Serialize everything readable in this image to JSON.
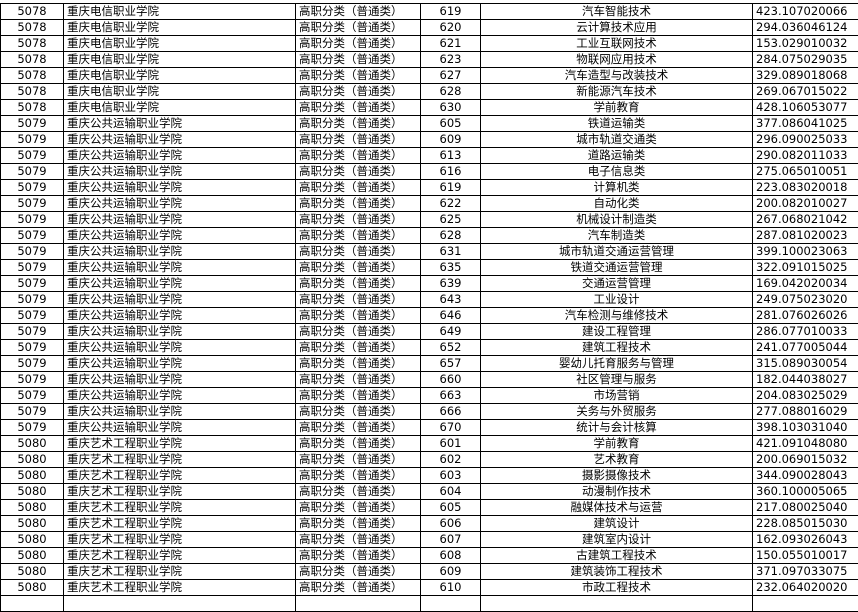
{
  "table": {
    "rows": [
      [
        "5078",
        "重庆电信职业学院",
        "高职分类（普通类）",
        "619",
        "汽车智能技术",
        "423.107020066"
      ],
      [
        "5078",
        "重庆电信职业学院",
        "高职分类（普通类）",
        "620",
        "云计算技术应用",
        "294.036046124"
      ],
      [
        "5078",
        "重庆电信职业学院",
        "高职分类（普通类）",
        "621",
        "工业互联网技术",
        "153.029010032"
      ],
      [
        "5078",
        "重庆电信职业学院",
        "高职分类（普通类）",
        "623",
        "物联网应用技术",
        "284.075029035"
      ],
      [
        "5078",
        "重庆电信职业学院",
        "高职分类（普通类）",
        "627",
        "汽车造型与改装技术",
        "329.089018068"
      ],
      [
        "5078",
        "重庆电信职业学院",
        "高职分类（普通类）",
        "628",
        "新能源汽车技术",
        "269.067015022"
      ],
      [
        "5078",
        "重庆电信职业学院",
        "高职分类（普通类）",
        "630",
        "学前教育",
        "428.106053077"
      ],
      [
        "5079",
        "重庆公共运输职业学院",
        "高职分类（普通类）",
        "605",
        "铁道运输类",
        "377.086041025"
      ],
      [
        "5079",
        "重庆公共运输职业学院",
        "高职分类（普通类）",
        "609",
        "城市轨道交通类",
        "296.090025033"
      ],
      [
        "5079",
        "重庆公共运输职业学院",
        "高职分类（普通类）",
        "613",
        "道路运输类",
        "290.082011033"
      ],
      [
        "5079",
        "重庆公共运输职业学院",
        "高职分类（普通类）",
        "616",
        "电子信息类",
        "275.065010051"
      ],
      [
        "5079",
        "重庆公共运输职业学院",
        "高职分类（普通类）",
        "619",
        "计算机类",
        "223.083020018"
      ],
      [
        "5079",
        "重庆公共运输职业学院",
        "高职分类（普通类）",
        "622",
        "自动化类",
        "200.082010027"
      ],
      [
        "5079",
        "重庆公共运输职业学院",
        "高职分类（普通类）",
        "625",
        "机械设计制造类",
        "267.068021042"
      ],
      [
        "5079",
        "重庆公共运输职业学院",
        "高职分类（普通类）",
        "628",
        "汽车制造类",
        "287.081020023"
      ],
      [
        "5079",
        "重庆公共运输职业学院",
        "高职分类（普通类）",
        "631",
        "城市轨道交通运营管理",
        "399.100023063"
      ],
      [
        "5079",
        "重庆公共运输职业学院",
        "高职分类（普通类）",
        "635",
        "铁道交通运营管理",
        "322.091015025"
      ],
      [
        "5079",
        "重庆公共运输职业学院",
        "高职分类（普通类）",
        "639",
        "交通运营管理",
        "169.042020034"
      ],
      [
        "5079",
        "重庆公共运输职业学院",
        "高职分类（普通类）",
        "643",
        "工业设计",
        "249.075023020"
      ],
      [
        "5079",
        "重庆公共运输职业学院",
        "高职分类（普通类）",
        "646",
        "汽车检测与维修技术",
        "281.076026026"
      ],
      [
        "5079",
        "重庆公共运输职业学院",
        "高职分类（普通类）",
        "649",
        "建设工程管理",
        "286.077010033"
      ],
      [
        "5079",
        "重庆公共运输职业学院",
        "高职分类（普通类）",
        "652",
        "建筑工程技术",
        "241.077005044"
      ],
      [
        "5079",
        "重庆公共运输职业学院",
        "高职分类（普通类）",
        "657",
        "婴幼儿托育服务与管理",
        "315.089030054"
      ],
      [
        "5079",
        "重庆公共运输职业学院",
        "高职分类（普通类）",
        "660",
        "社区管理与服务",
        "182.044038027"
      ],
      [
        "5079",
        "重庆公共运输职业学院",
        "高职分类（普通类）",
        "663",
        "市场营销",
        "204.083025029"
      ],
      [
        "5079",
        "重庆公共运输职业学院",
        "高职分类（普通类）",
        "666",
        "关务与外贸服务",
        "277.088016029"
      ],
      [
        "5079",
        "重庆公共运输职业学院",
        "高职分类（普通类）",
        "670",
        "统计与会计核算",
        "398.103031040"
      ],
      [
        "5080",
        "重庆艺术工程职业学院",
        "高职分类（普通类）",
        "601",
        "学前教育",
        "421.091048080"
      ],
      [
        "5080",
        "重庆艺术工程职业学院",
        "高职分类（普通类）",
        "602",
        "艺术教育",
        "200.069015032"
      ],
      [
        "5080",
        "重庆艺术工程职业学院",
        "高职分类（普通类）",
        "603",
        "摄影摄像技术",
        "344.090028043"
      ],
      [
        "5080",
        "重庆艺术工程职业学院",
        "高职分类（普通类）",
        "604",
        "动漫制作技术",
        "360.100005065"
      ],
      [
        "5080",
        "重庆艺术工程职业学院",
        "高职分类（普通类）",
        "605",
        "融媒体技术与运营",
        "217.080025040"
      ],
      [
        "5080",
        "重庆艺术工程职业学院",
        "高职分类（普通类）",
        "606",
        "建筑设计",
        "228.085015030"
      ],
      [
        "5080",
        "重庆艺术工程职业学院",
        "高职分类（普通类）",
        "607",
        "建筑室内设计",
        "162.093026043"
      ],
      [
        "5080",
        "重庆艺术工程职业学院",
        "高职分类（普通类）",
        "608",
        "古建筑工程技术",
        "150.055010017"
      ],
      [
        "5080",
        "重庆艺术工程职业学院",
        "高职分类（普通类）",
        "609",
        "建筑装饰工程技术",
        "371.097033075"
      ],
      [
        "5080",
        "重庆艺术工程职业学院",
        "高职分类（普通类）",
        "610",
        "市政工程技术",
        "232.064020020"
      ]
    ]
  }
}
